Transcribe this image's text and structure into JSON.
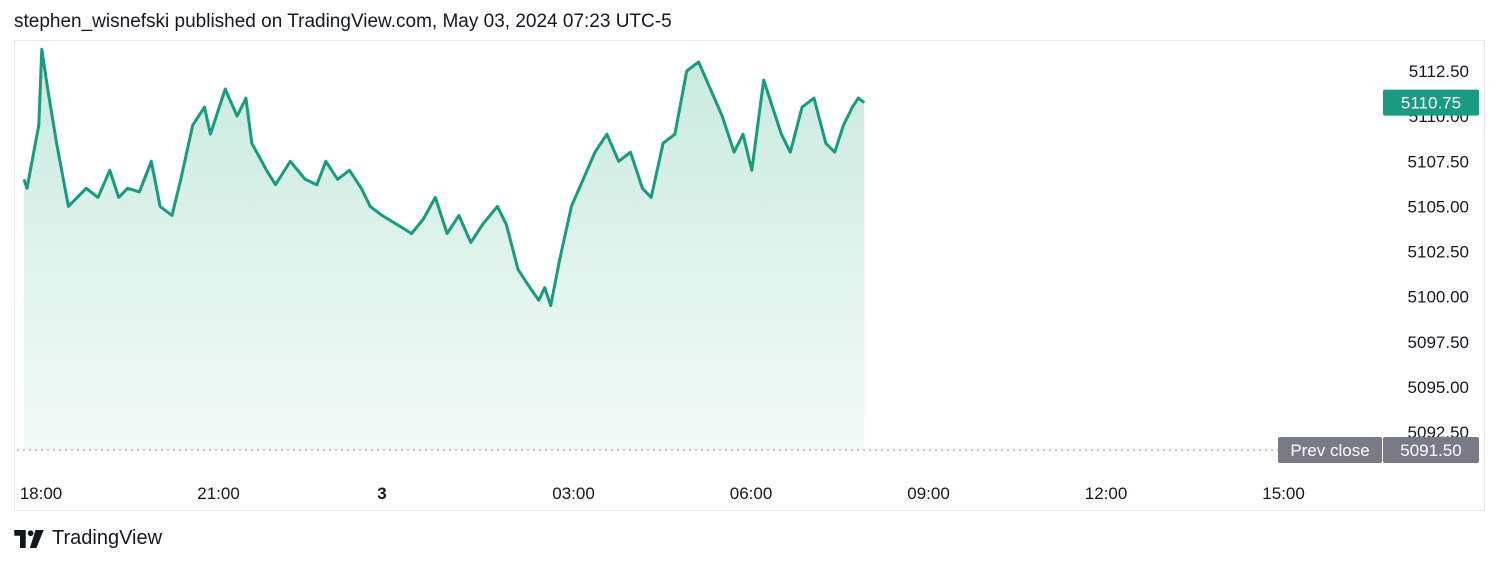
{
  "header": {
    "text": "stephen_wisnefski published on TradingView.com, May 03, 2024 07:23 UTC-5"
  },
  "footer": {
    "brand": "TradingView",
    "logo_icon": "tradingview-logo-icon"
  },
  "colors": {
    "line": "#1a9a80",
    "fill_top": "#c8eadf",
    "fill_bottom": "#f3fbf8",
    "price_badge": "#1a9a80",
    "prev_close_badge": "#787b86",
    "prev_close_line": "#9598a1"
  },
  "chart_data": {
    "type": "area",
    "y_axis": {
      "ticks": [
        "5112.50",
        "5110.00",
        "5107.50",
        "5105.00",
        "5102.50",
        "5100.00",
        "5097.50",
        "5095.00",
        "5092.50"
      ],
      "range": [
        5091.5,
        5113.5
      ]
    },
    "x_axis": {
      "ticks": [
        {
          "label": "18:00",
          "hours": 0,
          "bold": false
        },
        {
          "label": "21:00",
          "hours": 3,
          "bold": false
        },
        {
          "label": "3",
          "hours": 6,
          "bold": true
        },
        {
          "label": "03:00",
          "hours": 9,
          "bold": false
        },
        {
          "label": "06:00",
          "hours": 12,
          "bold": false
        },
        {
          "label": "09:00",
          "hours": 15,
          "bold": false
        },
        {
          "label": "12:00",
          "hours": 18,
          "bold": false
        },
        {
          "label": "15:00",
          "hours": 21,
          "bold": false
        }
      ]
    },
    "last_price": {
      "label": "5110.75",
      "value": 5110.75
    },
    "prev_close": {
      "label": "Prev close",
      "value_label": "5091.50",
      "value": 5091.5
    },
    "series": [
      {
        "x": [
          -0.05,
          0.0,
          0.2,
          0.25,
          0.35,
          0.5,
          0.7,
          1.0,
          1.2,
          1.4,
          1.55,
          1.7,
          1.9,
          2.1,
          2.25,
          2.45,
          2.6,
          2.8,
          3.0,
          3.1,
          3.35,
          3.55,
          3.7,
          3.8,
          4.05,
          4.2,
          4.45,
          4.7,
          4.9,
          5.05,
          5.25,
          5.45,
          5.65,
          5.8,
          6.0,
          6.25,
          6.5,
          6.7,
          6.9,
          7.1,
          7.3,
          7.5,
          7.7,
          7.95,
          8.1,
          8.3,
          8.5,
          8.65,
          8.75,
          8.85,
          9.0,
          9.2,
          9.4,
          9.6,
          9.8,
          10.0,
          10.2,
          10.4,
          10.55,
          10.75,
          10.95,
          11.15,
          11.35,
          11.55,
          11.75,
          11.95,
          12.1,
          12.25,
          12.45,
          12.6,
          12.75,
          12.9,
          13.1,
          13.3,
          13.5,
          13.65,
          13.8,
          13.95,
          14.05,
          14.15
        ],
        "y": [
          5106.5,
          5106.0,
          5109.5,
          5113.7,
          5111.5,
          5108.5,
          5105.0,
          5106.0,
          5105.5,
          5107.0,
          5105.5,
          5106.0,
          5105.8,
          5107.5,
          5105.0,
          5104.5,
          5106.5,
          5109.5,
          5110.5,
          5109.0,
          5111.5,
          5110.0,
          5111.0,
          5108.5,
          5107.0,
          5106.2,
          5107.5,
          5106.5,
          5106.2,
          5107.5,
          5106.5,
          5107.0,
          5106.0,
          5105.0,
          5104.5,
          5104.0,
          5103.5,
          5104.3,
          5105.5,
          5103.5,
          5104.5,
          5103.0,
          5104.0,
          5105.0,
          5104.0,
          5101.5,
          5100.5,
          5099.8,
          5100.5,
          5099.5,
          5102.0,
          5105.0,
          5106.5,
          5108.0,
          5109.0,
          5107.5,
          5108.0,
          5106.0,
          5105.5,
          5108.5,
          5109.0,
          5112.5,
          5113.0,
          5111.5,
          5110.0,
          5108.0,
          5109.0,
          5107.0,
          5112.0,
          5110.5,
          5109.0,
          5108.0,
          5110.5,
          5111.0,
          5108.5,
          5108.0,
          5109.5,
          5110.5,
          5111.0,
          5110.75
        ]
      }
    ]
  }
}
